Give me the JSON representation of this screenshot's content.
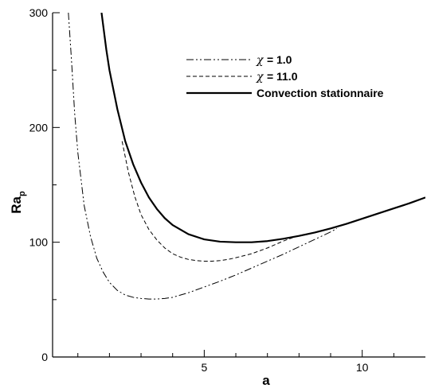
{
  "chart_data": {
    "type": "line",
    "xlabel": "a",
    "ylabel_main": "Ra",
    "ylabel_sub": "p",
    "xlim": [
      0.2,
      12
    ],
    "ylim": [
      0,
      300
    ],
    "x_ticks": [
      5,
      10
    ],
    "x_minor_ticks": [
      1,
      2,
      3,
      4,
      6,
      7,
      8,
      9,
      11
    ],
    "y_ticks": [
      0,
      100,
      200,
      300
    ],
    "y_minor_ticks": [
      50,
      150,
      250
    ],
    "grid": false,
    "legend_position": "top-right",
    "series": [
      {
        "name": "χ = 1.0",
        "legend_symbol": "χ",
        "legend_value": "= 1.0",
        "style": "dash-dot-dot",
        "color": "#000000",
        "x": [
          0.7,
          0.8,
          0.9,
          1.0,
          1.2,
          1.4,
          1.6,
          1.8,
          2.0,
          2.25,
          2.5,
          2.75,
          3.0,
          3.25,
          3.5,
          3.75,
          4.0,
          4.5,
          5.0,
          5.5,
          6.0,
          6.5,
          7.0,
          7.5,
          8.0,
          8.5,
          9.0,
          9.2
        ],
        "y": [
          300,
          258,
          212,
          178,
          132,
          105,
          86,
          74,
          65,
          58,
          54,
          52,
          51,
          50.5,
          50.5,
          51,
          52,
          56,
          61,
          66,
          71.5,
          77.5,
          83.5,
          89.5,
          96,
          102.5,
          109,
          112
        ]
      },
      {
        "name": "χ = 11.0",
        "legend_symbol": "χ",
        "legend_value": "= 11.0",
        "style": "dashed",
        "color": "#000000",
        "x": [
          2.4,
          2.6,
          2.8,
          3.0,
          3.25,
          3.5,
          3.75,
          4.0,
          4.25,
          4.5,
          4.75,
          5.0,
          5.25,
          5.5,
          5.75,
          6.0,
          6.5,
          7.0,
          7.5,
          7.8
        ],
        "y": [
          188,
          161,
          140,
          124,
          111,
          102,
          95,
          90,
          87,
          85,
          84,
          83.5,
          83.5,
          84,
          85,
          86.5,
          90,
          95,
          101,
          104
        ]
      },
      {
        "name": "Convection stationnaire",
        "style": "solid-thick",
        "color": "#000000",
        "x": [
          1.75,
          1.9,
          2.0,
          2.25,
          2.5,
          2.75,
          3.0,
          3.25,
          3.5,
          3.75,
          4.0,
          4.5,
          5.0,
          5.5,
          6.0,
          6.5,
          7.0,
          7.5,
          8.0,
          8.5,
          9.0,
          9.5,
          10.0,
          10.5,
          11.0,
          11.5,
          12.0
        ],
        "y": [
          300,
          268,
          250,
          216,
          188,
          168,
          152,
          139,
          129,
          121,
          115,
          107,
          102.5,
          100.5,
          100,
          100,
          101,
          103,
          105.5,
          108.5,
          112,
          116,
          120.5,
          125,
          129.5,
          134,
          139
        ]
      }
    ]
  }
}
